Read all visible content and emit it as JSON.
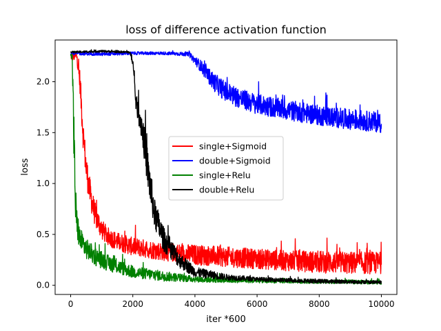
{
  "chart_data": {
    "type": "line",
    "title": "loss of difference activation function",
    "xlabel": "iter *600",
    "ylabel": "loss",
    "xlim": [
      -500,
      10500
    ],
    "ylim": [
      -0.09,
      2.41
    ],
    "x_ticks": [
      0,
      2000,
      4000,
      6000,
      8000,
      10000
    ],
    "x_tick_labels": [
      "0",
      "2000",
      "4000",
      "6000",
      "8000",
      "10000"
    ],
    "y_ticks": [
      0.0,
      0.5,
      1.0,
      1.5,
      2.0
    ],
    "y_tick_labels": [
      "0.0",
      "0.5",
      "1.0",
      "1.5",
      "2.0"
    ],
    "grid": false,
    "legend_position": "center-right",
    "series": [
      {
        "name": "single+Sigmoid",
        "color": "#ff0000",
        "x": [
          0,
          200,
          300,
          400,
          500,
          600,
          700,
          800,
          1000,
          1200,
          1500,
          2000,
          3000,
          4000,
          5000,
          6000,
          7000,
          8000,
          9000,
          10000
        ],
        "y": [
          2.25,
          2.25,
          2.0,
          1.5,
          1.15,
          0.95,
          0.8,
          0.68,
          0.55,
          0.48,
          0.43,
          0.38,
          0.33,
          0.3,
          0.28,
          0.26,
          0.24,
          0.23,
          0.22,
          0.22
        ],
        "noise": [
          0.04,
          0.05,
          0.12,
          0.15,
          0.15,
          0.14,
          0.13,
          0.12,
          0.1,
          0.09,
          0.09,
          0.09,
          0.09,
          0.1,
          0.1,
          0.1,
          0.1,
          0.11,
          0.11,
          0.11
        ]
      },
      {
        "name": "double+Sigmoid",
        "color": "#0000ff",
        "x": [
          0,
          1000,
          2000,
          3000,
          3800,
          4200,
          4600,
          5000,
          5500,
          6000,
          7000,
          8000,
          9000,
          10000
        ],
        "y": [
          2.28,
          2.27,
          2.28,
          2.28,
          2.27,
          2.15,
          2.0,
          1.9,
          1.83,
          1.78,
          1.72,
          1.67,
          1.63,
          1.6
        ],
        "noise": [
          0.015,
          0.015,
          0.015,
          0.015,
          0.02,
          0.06,
          0.09,
          0.1,
          0.1,
          0.1,
          0.1,
          0.1,
          0.1,
          0.1
        ]
      },
      {
        "name": "single+Relu",
        "color": "#008000",
        "x": [
          0,
          50,
          100,
          150,
          200,
          300,
          500,
          800,
          1200,
          2000,
          3000,
          4000,
          5000,
          7000,
          10000
        ],
        "y": [
          2.25,
          2.25,
          1.5,
          0.85,
          0.6,
          0.45,
          0.36,
          0.28,
          0.22,
          0.13,
          0.09,
          0.06,
          0.05,
          0.04,
          0.03
        ],
        "noise": [
          0.03,
          0.03,
          0.3,
          0.25,
          0.15,
          0.12,
          0.1,
          0.09,
          0.08,
          0.06,
          0.05,
          0.03,
          0.025,
          0.02,
          0.02
        ]
      },
      {
        "name": "double+Relu",
        "color": "#000000",
        "x": [
          0,
          1000,
          1900,
          2000,
          2100,
          2300,
          2500,
          2700,
          3000,
          3500,
          4000,
          5000,
          6000,
          7000,
          8000,
          10000
        ],
        "y": [
          2.29,
          2.3,
          2.29,
          2.2,
          1.8,
          1.55,
          1.1,
          0.7,
          0.45,
          0.25,
          0.13,
          0.08,
          0.06,
          0.05,
          0.04,
          0.03
        ],
        "noise": [
          0.01,
          0.01,
          0.01,
          0.04,
          0.08,
          0.15,
          0.2,
          0.15,
          0.12,
          0.08,
          0.05,
          0.03,
          0.02,
          0.02,
          0.02,
          0.015
        ]
      }
    ]
  }
}
